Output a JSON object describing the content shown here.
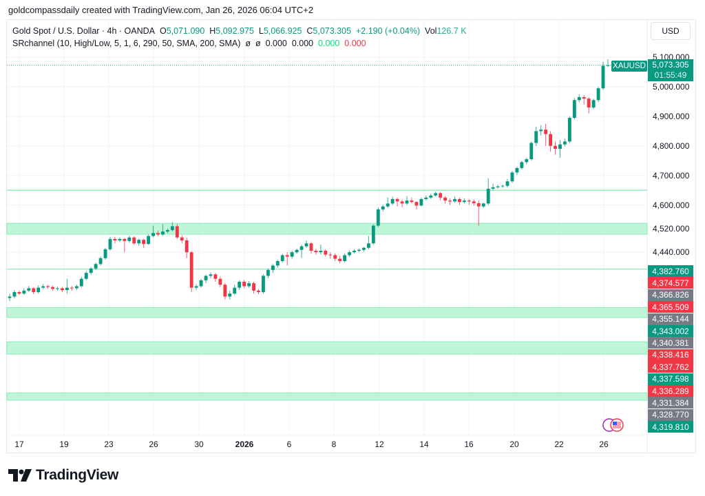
{
  "credit": "goldcompassdaily created with TradingView.com, Jan 26, 2026 06:04 UTC+2",
  "legend": {
    "symbol": "Gold Spot / U.S. Dollar · 4h · OANDA",
    "o_label": "O",
    "o": "5,071.090",
    "h_label": "H",
    "h": "5,092.975",
    "l_label": "L",
    "l": "5,066.925",
    "c_label": "C",
    "c": "5,073.305",
    "change": "+2.190 (+0.04%)",
    "vol_label": "Vol",
    "vol": "126.7 K",
    "indicator": "SRchannel (10, High/Low, 5, 1, 6, 290, 50, SMA, 200, SMA)",
    "ind_vals": [
      "ø",
      "ø",
      "0.000",
      "0.000"
    ],
    "ind_green": "0.000",
    "ind_red": "0.000"
  },
  "currency": "USD",
  "symbol_tag": "XAUUSD",
  "last_price": "5,073.305",
  "countdown": "01:55:49",
  "colors": {
    "up": "#089981",
    "down": "#f23645",
    "gray": "#787b86",
    "zone": "#b9f6d6",
    "zone_line": "#7ee8b0"
  },
  "chart_data": {
    "type": "candlestick",
    "ylim": [
      3820,
      5119
    ],
    "y_ticks": [
      "5,100.000",
      "5,000.000",
      "4,900.000",
      "4,800.000",
      "4,700.000",
      "4,600.000",
      "4,520.000",
      "4,440.000"
    ],
    "y_tick_values": [
      5100,
      5000,
      4900,
      4800,
      4700,
      4600,
      4520,
      4440
    ],
    "x_ticks": [
      "17",
      "19",
      "23",
      "26",
      "30",
      "2026",
      "6",
      "8",
      "12",
      "14",
      "16",
      "20",
      "22",
      "26"
    ],
    "last_close": 5073.305,
    "sr_lines": [
      4650,
      4382.76
    ],
    "sr_zones": [
      [
        4501,
        4538
      ],
      [
        4219,
        4253
      ],
      [
        4095,
        4137
      ],
      [
        3939,
        3964
      ]
    ],
    "price_labels": [
      {
        "v": "4,382.760",
        "c": "up"
      },
      {
        "v": "4,374.577",
        "c": "down"
      },
      {
        "v": "4,366.826",
        "c": "gray"
      },
      {
        "v": "4,365.509",
        "c": "down"
      },
      {
        "v": "4,355.144",
        "c": "gray"
      },
      {
        "v": "4,343.002",
        "c": "up"
      },
      {
        "v": "4,340.381",
        "c": "gray"
      },
      {
        "v": "4,338.416",
        "c": "down"
      },
      {
        "v": "4,337.762",
        "c": "down"
      },
      {
        "v": "4,337.598",
        "c": "up"
      },
      {
        "v": "4,336.289",
        "c": "down"
      },
      {
        "v": "4,331.384",
        "c": "gray"
      },
      {
        "v": "4,328.770",
        "c": "gray"
      },
      {
        "v": "4,319.810",
        "c": "up"
      }
    ],
    "ohlc": [
      [
        4285,
        4300,
        4275,
        4290
      ],
      [
        4290,
        4312,
        4284,
        4305
      ],
      [
        4305,
        4310,
        4295,
        4300
      ],
      [
        4300,
        4318,
        4296,
        4310
      ],
      [
        4310,
        4326,
        4305,
        4318
      ],
      [
        4318,
        4322,
        4298,
        4305
      ],
      [
        4305,
        4328,
        4300,
        4320
      ],
      [
        4320,
        4332,
        4315,
        4325
      ],
      [
        4325,
        4330,
        4316,
        4322
      ],
      [
        4322,
        4327,
        4310,
        4316
      ],
      [
        4316,
        4324,
        4310,
        4318
      ],
      [
        4318,
        4322,
        4305,
        4312
      ],
      [
        4312,
        4350,
        4300,
        4320
      ],
      [
        4320,
        4326,
        4310,
        4318
      ],
      [
        4318,
        4330,
        4312,
        4325
      ],
      [
        4325,
        4356,
        4320,
        4350
      ],
      [
        4350,
        4376,
        4345,
        4370
      ],
      [
        4370,
        4390,
        4365,
        4385
      ],
      [
        4385,
        4405,
        4380,
        4400
      ],
      [
        4400,
        4425,
        4395,
        4420
      ],
      [
        4420,
        4455,
        4415,
        4450
      ],
      [
        4450,
        4492,
        4445,
        4485
      ],
      [
        4485,
        4492,
        4470,
        4480
      ],
      [
        4480,
        4490,
        4474,
        4485
      ],
      [
        4485,
        4488,
        4440,
        4478
      ],
      [
        4478,
        4496,
        4472,
        4490
      ],
      [
        4490,
        4495,
        4465,
        4470
      ],
      [
        4470,
        4486,
        4462,
        4482
      ],
      [
        4482,
        4486,
        4455,
        4468
      ],
      [
        4468,
        4500,
        4465,
        4495
      ],
      [
        4495,
        4530,
        4490,
        4505
      ],
      [
        4505,
        4512,
        4495,
        4500
      ],
      [
        4500,
        4535,
        4496,
        4510
      ],
      [
        4510,
        4520,
        4505,
        4515
      ],
      [
        4515,
        4542,
        4510,
        4528
      ],
      [
        4528,
        4535,
        4485,
        4490
      ],
      [
        4490,
        4498,
        4470,
        4480
      ],
      [
        4480,
        4490,
        4420,
        4440
      ],
      [
        4440,
        4445,
        4305,
        4320
      ],
      [
        4320,
        4332,
        4312,
        4325
      ],
      [
        4325,
        4350,
        4320,
        4345
      ],
      [
        4345,
        4365,
        4335,
        4360
      ],
      [
        4360,
        4372,
        4352,
        4365
      ],
      [
        4365,
        4370,
        4340,
        4350
      ],
      [
        4350,
        4358,
        4322,
        4330
      ],
      [
        4330,
        4335,
        4280,
        4290
      ],
      [
        4290,
        4310,
        4280,
        4300
      ],
      [
        4300,
        4330,
        4295,
        4320
      ],
      [
        4320,
        4345,
        4312,
        4340
      ],
      [
        4340,
        4346,
        4318,
        4325
      ],
      [
        4325,
        4342,
        4320,
        4335
      ],
      [
        4335,
        4340,
        4300,
        4310
      ],
      [
        4310,
        4316,
        4298,
        4305
      ],
      [
        4305,
        4365,
        4300,
        4360
      ],
      [
        4360,
        4385,
        4352,
        4380
      ],
      [
        4380,
        4400,
        4370,
        4395
      ],
      [
        4395,
        4415,
        4388,
        4410
      ],
      [
        4410,
        4435,
        4405,
        4430
      ],
      [
        4430,
        4440,
        4395,
        4425
      ],
      [
        4425,
        4445,
        4418,
        4440
      ],
      [
        4440,
        4452,
        4435,
        4448
      ],
      [
        4448,
        4465,
        4420,
        4460
      ],
      [
        4460,
        4480,
        4455,
        4470
      ],
      [
        4470,
        4474,
        4435,
        4445
      ],
      [
        4445,
        4452,
        4432,
        4440
      ],
      [
        4440,
        4466,
        4432,
        4445
      ],
      [
        4445,
        4450,
        4425,
        4432
      ],
      [
        4432,
        4440,
        4418,
        4430
      ],
      [
        4430,
        4436,
        4410,
        4418
      ],
      [
        4418,
        4428,
        4402,
        4410
      ],
      [
        4410,
        4436,
        4405,
        4430
      ],
      [
        4430,
        4446,
        4424,
        4440
      ],
      [
        4440,
        4450,
        4435,
        4445
      ],
      [
        4445,
        4452,
        4440,
        4448
      ],
      [
        4448,
        4458,
        4442,
        4455
      ],
      [
        4455,
        4495,
        4450,
        4470
      ],
      [
        4470,
        4535,
        4465,
        4530
      ],
      [
        4530,
        4592,
        4525,
        4585
      ],
      [
        4585,
        4600,
        4578,
        4595
      ],
      [
        4595,
        4625,
        4590,
        4605
      ],
      [
        4605,
        4628,
        4600,
        4620
      ],
      [
        4620,
        4625,
        4595,
        4612
      ],
      [
        4612,
        4618,
        4592,
        4605
      ],
      [
        4605,
        4630,
        4600,
        4615
      ],
      [
        4615,
        4625,
        4605,
        4610
      ],
      [
        4610,
        4612,
        4585,
        4598
      ],
      [
        4598,
        4625,
        4595,
        4620
      ],
      [
        4620,
        4632,
        4615,
        4625
      ],
      [
        4625,
        4638,
        4620,
        4632
      ],
      [
        4632,
        4645,
        4628,
        4640
      ],
      [
        4640,
        4644,
        4615,
        4625
      ],
      [
        4625,
        4630,
        4605,
        4615
      ],
      [
        4615,
        4622,
        4600,
        4612
      ],
      [
        4612,
        4628,
        4608,
        4620
      ],
      [
        4620,
        4625,
        4600,
        4610
      ],
      [
        4610,
        4622,
        4605,
        4615
      ],
      [
        4615,
        4620,
        4600,
        4612
      ],
      [
        4612,
        4618,
        4598,
        4606
      ],
      [
        4606,
        4615,
        4530,
        4595
      ],
      [
        4595,
        4608,
        4590,
        4605
      ],
      [
        4605,
        4690,
        4600,
        4655
      ],
      [
        4655,
        4672,
        4650,
        4660
      ],
      [
        4660,
        4668,
        4655,
        4663
      ],
      [
        4663,
        4670,
        4658,
        4665
      ],
      [
        4665,
        4688,
        4660,
        4680
      ],
      [
        4680,
        4715,
        4675,
        4710
      ],
      [
        4710,
        4730,
        4702,
        4725
      ],
      [
        4725,
        4750,
        4720,
        4745
      ],
      [
        4745,
        4760,
        4738,
        4755
      ],
      [
        4755,
        4815,
        4750,
        4810
      ],
      [
        4810,
        4865,
        4800,
        4850
      ],
      [
        4850,
        4870,
        4835,
        4855
      ],
      [
        4855,
        4875,
        4800,
        4840
      ],
      [
        4840,
        4850,
        4780,
        4800
      ],
      [
        4800,
        4815,
        4770,
        4790
      ],
      [
        4790,
        4820,
        4760,
        4805
      ],
      [
        4805,
        4825,
        4798,
        4815
      ],
      [
        4815,
        4900,
        4810,
        4895
      ],
      [
        4895,
        4962,
        4890,
        4955
      ],
      [
        4955,
        4975,
        4948,
        4965
      ],
      [
        4965,
        4972,
        4940,
        4960
      ],
      [
        4960,
        4965,
        4910,
        4930
      ],
      [
        4930,
        4960,
        4925,
        4955
      ],
      [
        4955,
        5000,
        4948,
        4995
      ],
      [
        4995,
        5085,
        4990,
        5071
      ],
      [
        5071,
        5093,
        5067,
        5073
      ]
    ]
  },
  "brand": "TradingView"
}
